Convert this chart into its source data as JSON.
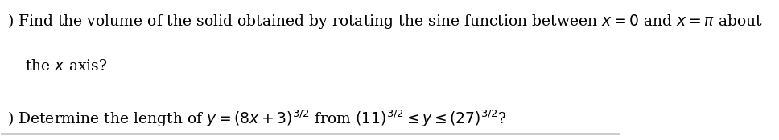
{
  "background_color": "#ffffff",
  "text_color": "#000000",
  "font_size": 13.5,
  "fig_width": 9.68,
  "fig_height": 1.75,
  "dpi": 100
}
